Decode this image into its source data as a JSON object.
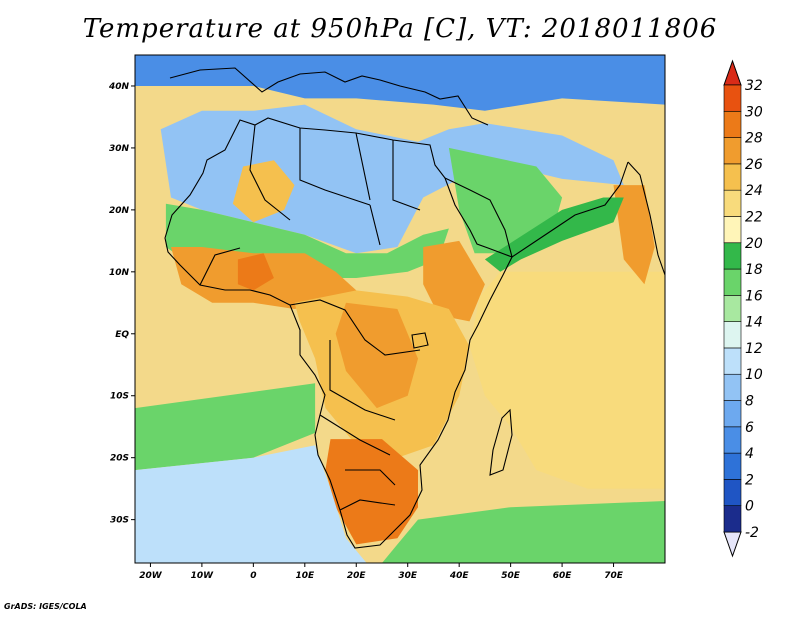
{
  "title": "Temperature at 950hPa [C], VT: 2018011806",
  "credit": "GrADS: IGES/COLA",
  "map": {
    "lon_range": [
      -23,
      80
    ],
    "lat_range": [
      -37,
      45
    ],
    "lon_ticks": [
      {
        "value": -20,
        "label": "20W"
      },
      {
        "value": -10,
        "label": "10W"
      },
      {
        "value": 0,
        "label": "0"
      },
      {
        "value": 10,
        "label": "10E"
      },
      {
        "value": 20,
        "label": "20E"
      },
      {
        "value": 30,
        "label": "30E"
      },
      {
        "value": 40,
        "label": "40E"
      },
      {
        "value": 50,
        "label": "50E"
      },
      {
        "value": 60,
        "label": "60E"
      },
      {
        "value": 70,
        "label": "70E"
      }
    ],
    "lat_ticks": [
      {
        "value": 40,
        "label": "40N"
      },
      {
        "value": 30,
        "label": "30N"
      },
      {
        "value": 20,
        "label": "20N"
      },
      {
        "value": 10,
        "label": "10N"
      },
      {
        "value": 0,
        "label": "EQ"
      },
      {
        "value": -10,
        "label": "10S"
      },
      {
        "value": -20,
        "label": "20S"
      },
      {
        "value": -30,
        "label": "30S"
      }
    ],
    "ocean_color": "#f3d98a"
  },
  "colorbar": {
    "min": -2,
    "max": 32,
    "ticks": [
      -2,
      0,
      2,
      4,
      6,
      8,
      10,
      12,
      14,
      16,
      18,
      20,
      22,
      24,
      26,
      28,
      30,
      32
    ],
    "under_color": "#e6e6fa",
    "over_color": "#d92b18",
    "colors": [
      "#1b2c8c",
      "#1f55c4",
      "#2e72d8",
      "#4a8ee6",
      "#6da9ef",
      "#92c3f4",
      "#bde0fa",
      "#ddf5f0",
      "#a8e8a0",
      "#6ad46a",
      "#33b84a",
      "#fff5b8",
      "#f8db7c",
      "#f5c04e",
      "#f09c2e",
      "#ec7a18",
      "#e85210"
    ]
  },
  "regions": [
    {
      "name": "europe-cold",
      "color": "#4a8ee6",
      "lonlat": [
        [
          -23,
          45
        ],
        [
          80,
          45
        ],
        [
          80,
          37
        ],
        [
          60,
          38
        ],
        [
          45,
          36
        ],
        [
          35,
          37
        ],
        [
          20,
          38
        ],
        [
          10,
          38
        ],
        [
          0,
          40
        ],
        [
          -23,
          40
        ]
      ]
    },
    {
      "name": "north-africa-mild",
      "color": "#92c3f4",
      "lonlat": [
        [
          -18,
          33
        ],
        [
          -10,
          36
        ],
        [
          0,
          36
        ],
        [
          10,
          37
        ],
        [
          20,
          33
        ],
        [
          32,
          31
        ],
        [
          38,
          33
        ],
        [
          45,
          34
        ],
        [
          60,
          32
        ],
        [
          70,
          28
        ],
        [
          72,
          24
        ],
        [
          60,
          25
        ],
        [
          50,
          27
        ],
        [
          40,
          25
        ],
        [
          33,
          22
        ],
        [
          28,
          14
        ],
        [
          20,
          13
        ],
        [
          10,
          16
        ],
        [
          0,
          18
        ],
        [
          -10,
          20
        ],
        [
          -16,
          22
        ]
      ]
    },
    {
      "name": "sahara-green",
      "color": "#6ad46a",
      "lonlat": [
        [
          -17,
          21
        ],
        [
          -10,
          20
        ],
        [
          0,
          18
        ],
        [
          10,
          16
        ],
        [
          18,
          13
        ],
        [
          26,
          13
        ],
        [
          33,
          16
        ],
        [
          38,
          17
        ],
        [
          36,
          12
        ],
        [
          30,
          10
        ],
        [
          20,
          9
        ],
        [
          10,
          9
        ],
        [
          0,
          10
        ],
        [
          -10,
          10
        ],
        [
          -17,
          14
        ]
      ]
    },
    {
      "name": "west-sahara-warm",
      "color": "#f5c04e",
      "lonlat": [
        [
          -2,
          27
        ],
        [
          4,
          28
        ],
        [
          8,
          24
        ],
        [
          6,
          20
        ],
        [
          0,
          18
        ],
        [
          -4,
          21
        ]
      ]
    },
    {
      "name": "west-africa-hot",
      "color": "#f09c2e",
      "lonlat": [
        [
          -16,
          14
        ],
        [
          -10,
          14
        ],
        [
          0,
          13
        ],
        [
          10,
          13
        ],
        [
          16,
          10
        ],
        [
          20,
          7
        ],
        [
          14,
          5
        ],
        [
          8,
          4
        ],
        [
          0,
          5
        ],
        [
          -8,
          5
        ],
        [
          -14,
          8
        ]
      ]
    },
    {
      "name": "nigeria-hot",
      "color": "#ec7a18",
      "lonlat": [
        [
          -3,
          12
        ],
        [
          2,
          13
        ],
        [
          4,
          9
        ],
        [
          0,
          7
        ],
        [
          -3,
          8
        ]
      ]
    },
    {
      "name": "ethiopia-hot",
      "color": "#f09c2e",
      "lonlat": [
        [
          33,
          14
        ],
        [
          40,
          15
        ],
        [
          45,
          8
        ],
        [
          42,
          2
        ],
        [
          36,
          3
        ],
        [
          33,
          8
        ]
      ]
    },
    {
      "name": "central-africa-warm",
      "color": "#f5c04e",
      "lonlat": [
        [
          8,
          5
        ],
        [
          20,
          7
        ],
        [
          30,
          6
        ],
        [
          38,
          4
        ],
        [
          42,
          -2
        ],
        [
          40,
          -10
        ],
        [
          35,
          -18
        ],
        [
          28,
          -20
        ],
        [
          20,
          -18
        ],
        [
          14,
          -12
        ],
        [
          12,
          -4
        ],
        [
          9,
          2
        ]
      ]
    },
    {
      "name": "congo-hot",
      "color": "#f09c2e",
      "lonlat": [
        [
          18,
          5
        ],
        [
          28,
          4
        ],
        [
          32,
          -4
        ],
        [
          30,
          -10
        ],
        [
          24,
          -12
        ],
        [
          18,
          -6
        ],
        [
          16,
          0
        ]
      ]
    },
    {
      "name": "kalahari-hot",
      "color": "#ec7a18",
      "lonlat": [
        [
          15,
          -17
        ],
        [
          25,
          -17
        ],
        [
          32,
          -22
        ],
        [
          32,
          -28
        ],
        [
          28,
          -33
        ],
        [
          20,
          -34
        ],
        [
          16,
          -28
        ],
        [
          14,
          -22
        ]
      ]
    },
    {
      "name": "indian-ocean-warm",
      "color": "#f8db7c",
      "lonlat": [
        [
          48,
          10
        ],
        [
          80,
          10
        ],
        [
          80,
          -25
        ],
        [
          65,
          -25
        ],
        [
          55,
          -22
        ],
        [
          50,
          -15
        ],
        [
          45,
          -10
        ],
        [
          42,
          -2
        ],
        [
          44,
          6
        ]
      ]
    },
    {
      "name": "india-hot",
      "color": "#f09c2e",
      "lonlat": [
        [
          70,
          24
        ],
        [
          76,
          24
        ],
        [
          78,
          14
        ],
        [
          76,
          8
        ],
        [
          72,
          12
        ]
      ]
    },
    {
      "name": "arabia-green",
      "color": "#6ad46a",
      "lonlat": [
        [
          38,
          30
        ],
        [
          55,
          27
        ],
        [
          60,
          22
        ],
        [
          58,
          16
        ],
        [
          50,
          13
        ],
        [
          43,
          13
        ],
        [
          40,
          20
        ]
      ]
    },
    {
      "name": "arabian-sea-green",
      "color": "#33b84a",
      "lonlat": [
        [
          45,
          12
        ],
        [
          60,
          20
        ],
        [
          68,
          22
        ],
        [
          72,
          22
        ],
        [
          70,
          18
        ],
        [
          60,
          15
        ],
        [
          52,
          12
        ],
        [
          48,
          10
        ]
      ]
    },
    {
      "name": "atlantic-green-band",
      "color": "#6ad46a",
      "lonlat": [
        [
          -23,
          -12
        ],
        [
          12,
          -8
        ],
        [
          12,
          -16
        ],
        [
          0,
          -20
        ],
        [
          -23,
          -22
        ]
      ]
    },
    {
      "name": "south-atlantic-cool",
      "color": "#bde0fa",
      "lonlat": [
        [
          -23,
          -22
        ],
        [
          0,
          -20
        ],
        [
          12,
          -18
        ],
        [
          15,
          -25
        ],
        [
          18,
          -33
        ],
        [
          22,
          -37
        ],
        [
          -23,
          -37
        ]
      ]
    },
    {
      "name": "southern-indian-green",
      "color": "#6ad46a",
      "lonlat": [
        [
          32,
          -30
        ],
        [
          50,
          -28
        ],
        [
          80,
          -27
        ],
        [
          80,
          -37
        ],
        [
          25,
          -37
        ],
        [
          28,
          -34
        ]
      ]
    }
  ]
}
